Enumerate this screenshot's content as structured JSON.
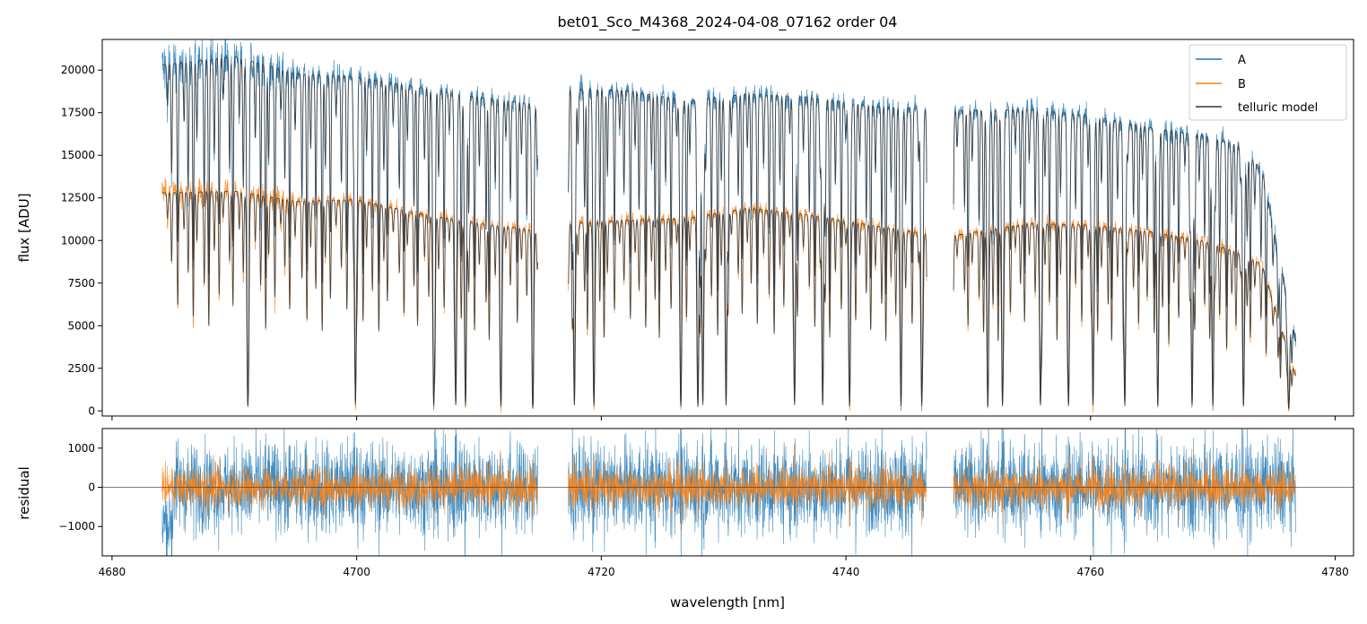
{
  "chart_data": [
    {
      "type": "line",
      "title": "bet01_Sco_M4368_2024-04-08_07162  order 04",
      "xlabel": "",
      "ylabel": "flux [ADU]",
      "xlim": [
        4679.2,
        4781.5
      ],
      "ylim": [
        -300,
        21800
      ],
      "yticks": [
        0,
        2500,
        5000,
        7500,
        10000,
        12500,
        15000,
        17500,
        20000
      ],
      "ytick_labels": [
        "0",
        "2500",
        "5000",
        "7500",
        "10000",
        "12500",
        "15000",
        "17500",
        "20000"
      ],
      "xticks": [
        4680,
        4700,
        4720,
        4740,
        4760,
        4780
      ],
      "legend_position": "top-right",
      "grid": false,
      "data_range": [
        4684.1,
        4776.8
      ],
      "gaps": [
        [
          4714.8,
          4717.3
        ],
        [
          4746.6,
          4748.8
        ]
      ],
      "series": [
        {
          "name": "A",
          "color": "#1f77b4",
          "continuum": [
            [
              4684.1,
              20300
            ],
            [
              4690,
              20800
            ],
            [
              4695,
              19800
            ],
            [
              4700,
              19600
            ],
            [
              4705,
              19000
            ],
            [
              4710,
              18400
            ],
            [
              4714.7,
              18000
            ],
            [
              4717.4,
              18900
            ],
            [
              4722,
              18800
            ],
            [
              4727,
              18200
            ],
            [
              4732,
              18600
            ],
            [
              4737,
              18400
            ],
            [
              4742,
              17900
            ],
            [
              4746.5,
              17700
            ],
            [
              4748.9,
              17600
            ],
            [
              4755,
              17700
            ],
            [
              4760,
              17300
            ],
            [
              4765,
              16600
            ],
            [
              4769,
              16200
            ],
            [
              4772,
              15600
            ],
            [
              4774,
              14200
            ],
            [
              4776.8,
              4000
            ]
          ]
        },
        {
          "name": "B",
          "color": "#ff7f0e",
          "continuum": [
            [
              4684.1,
              12800
            ],
            [
              4690,
              12900
            ],
            [
              4695,
              12300
            ],
            [
              4700,
              12400
            ],
            [
              4705,
              11600
            ],
            [
              4710,
              11000
            ],
            [
              4714.7,
              10600
            ],
            [
              4717.4,
              11000
            ],
            [
              4722,
              11200
            ],
            [
              4727,
              11300
            ],
            [
              4732,
              11900
            ],
            [
              4737,
              11500
            ],
            [
              4742,
              10900
            ],
            [
              4746.5,
              10400
            ],
            [
              4748.9,
              10300
            ],
            [
              4755,
              11000
            ],
            [
              4760,
              10900
            ],
            [
              4765,
              10500
            ],
            [
              4769,
              10000
            ],
            [
              4772,
              9300
            ],
            [
              4774,
              8600
            ],
            [
              4776.8,
              2000
            ]
          ]
        },
        {
          "name": "telluric model",
          "color": "#333333"
        }
      ],
      "absorption_lines": [
        4691.1,
        4699.9,
        4706.3,
        4708.1,
        4708.9,
        4711.8,
        4714.4,
        4717.8,
        4719.4,
        4726.5,
        4727.9,
        4728.3,
        4730.2,
        4735.8,
        4738.1,
        4740.3,
        4744.5,
        4746.2,
        4751.6,
        4752.8,
        4755.9,
        4758.2,
        4760.2,
        4762.8,
        4765.5,
        4768.3,
        4770.0,
        4772.5,
        4776.2
      ]
    },
    {
      "type": "line",
      "title": "",
      "xlabel": "wavelength [nm]",
      "ylabel": "residual",
      "xlim": [
        4679.2,
        4781.5
      ],
      "ylim": [
        -1750,
        1500
      ],
      "yticks": [
        -1000,
        0,
        1000
      ],
      "ytick_labels": [
        "−1000",
        "0",
        "1000"
      ],
      "xticks": [
        4680,
        4700,
        4720,
        4740,
        4760,
        4780
      ],
      "xtick_labels": [
        "4680",
        "4700",
        "4720",
        "4740",
        "4760",
        "4780"
      ],
      "zero_line": true,
      "series": [
        {
          "name": "A",
          "color": "#1f77b4",
          "amplitude": 850
        },
        {
          "name": "B",
          "color": "#ff7f0e",
          "amplitude": 380
        }
      ]
    }
  ]
}
